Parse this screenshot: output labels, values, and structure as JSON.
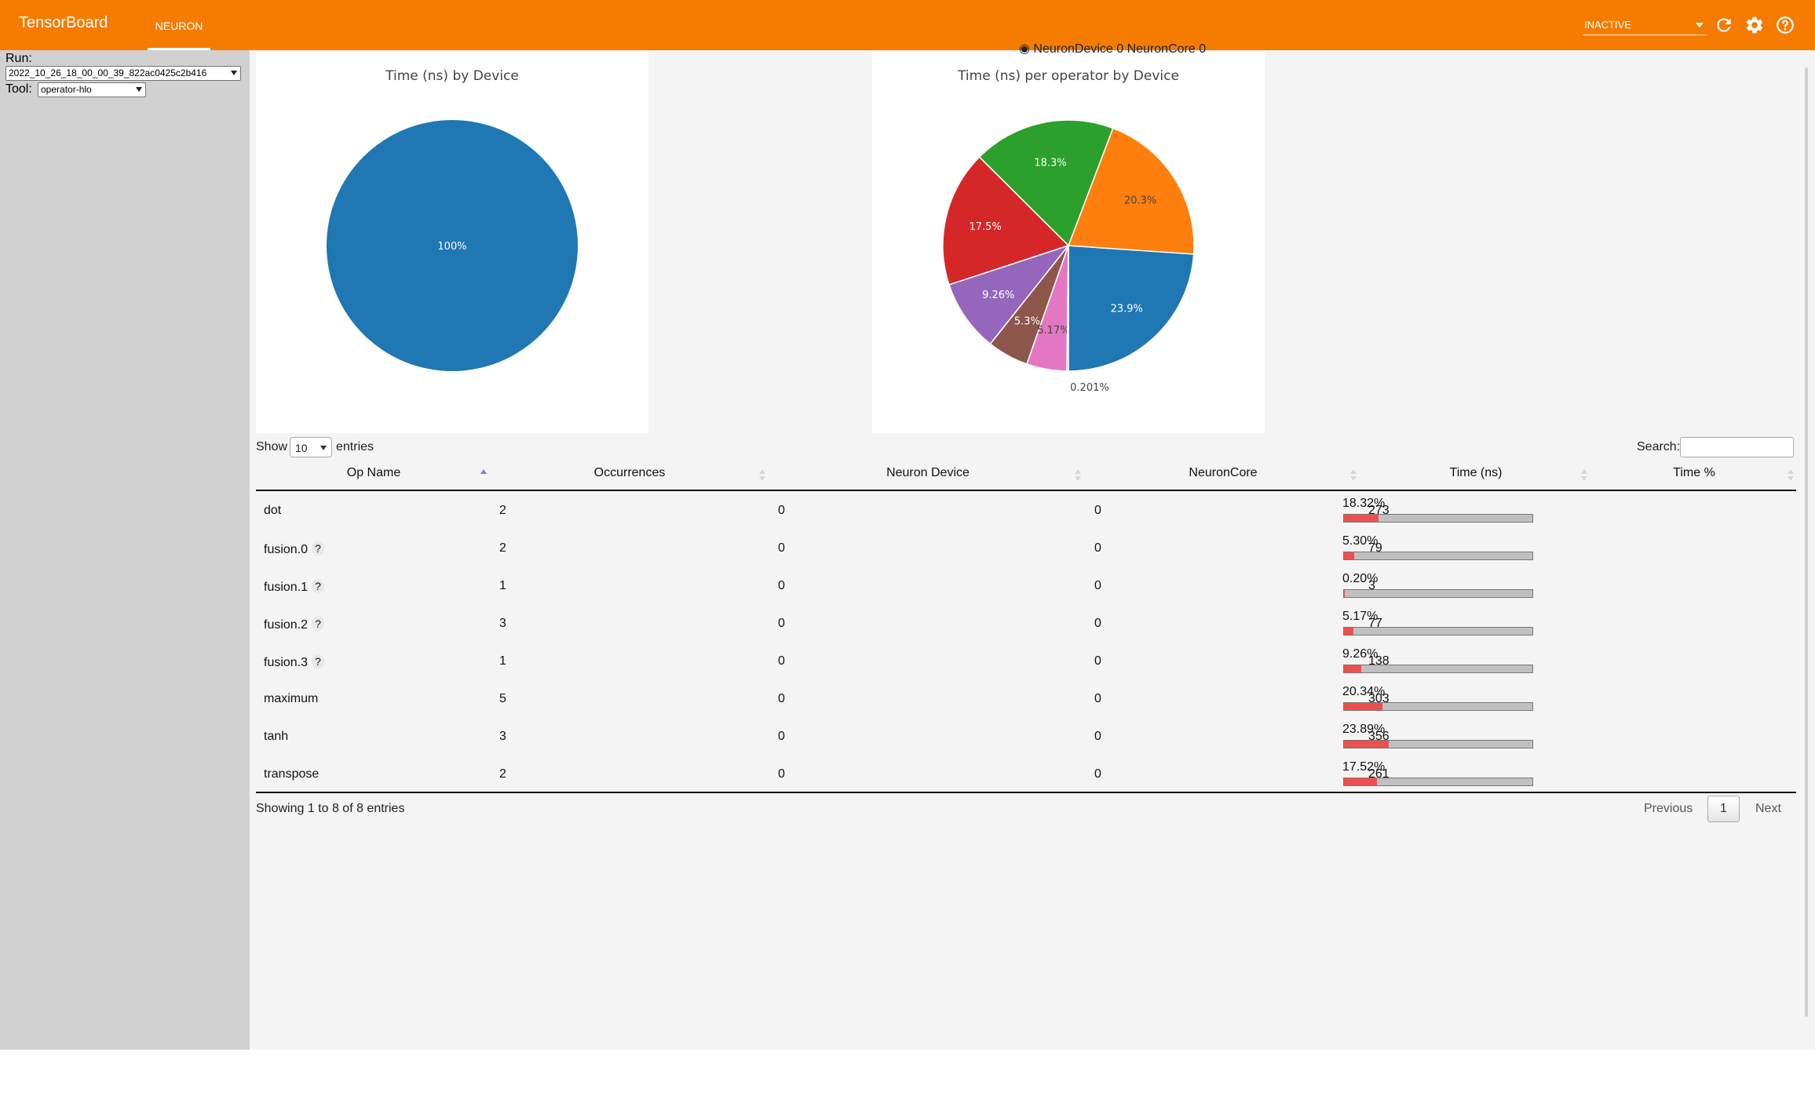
{
  "app": {
    "title": "TensorBoard",
    "active_tab": "NEURON",
    "status_select": "INACTIVE"
  },
  "icons": {
    "refresh": "refresh-icon",
    "settings": "gear-icon",
    "help": "help-icon"
  },
  "sidebar": {
    "run_label": "Run:",
    "run_value": "2022_10_26_18_00_00_39_822ac0425c2b416",
    "tool_label": "Tool:",
    "tool_value": "operator-hlo"
  },
  "legend_clip_text": "NeuronDevice 0 NeuronCore 0",
  "chart_data": [
    {
      "type": "pie",
      "title": "Time (ns) by Device",
      "labels": [
        "100%"
      ],
      "values": [
        100
      ],
      "colors": [
        "#1f77b4"
      ]
    },
    {
      "type": "pie",
      "title": "Time (ns) per operator by Device",
      "labels": [
        "23.9%",
        "20.3%",
        "18.3%",
        "17.5%",
        "9.26%",
        "5.3%",
        "5.17%",
        "0.201%"
      ],
      "values": [
        23.9,
        20.3,
        18.3,
        17.5,
        9.26,
        5.3,
        5.17,
        0.201
      ],
      "colors": [
        "#1f77b4",
        "#ff7f0e",
        "#2ca02c",
        "#d62728",
        "#9467bd",
        "#8c564b",
        "#e377c2",
        "#7f7f7f"
      ],
      "label_colors": [
        "#ffffff",
        "#444444",
        "#ffffff",
        "#ffffff",
        "#ffffff",
        "#ffffff",
        "#444444",
        "#444444"
      ]
    }
  ],
  "table": {
    "show_label": "Show",
    "entries_value": "10",
    "entries_label": "entries",
    "search_label": "Search:",
    "columns": [
      "Op Name",
      "Occurrences",
      "Neuron Device",
      "NeuronCore",
      "Time (ns)",
      "Time %"
    ],
    "rows": [
      {
        "op": "dot",
        "has_q": false,
        "occ": "2",
        "dev": "0",
        "core": "0",
        "time": "273",
        "pct": "18.32%",
        "frac": 0.1832
      },
      {
        "op": "fusion.0",
        "has_q": true,
        "occ": "2",
        "dev": "0",
        "core": "0",
        "time": "79",
        "pct": "5.30%",
        "frac": 0.053
      },
      {
        "op": "fusion.1",
        "has_q": true,
        "occ": "1",
        "dev": "0",
        "core": "0",
        "time": "3",
        "pct": "0.20%",
        "frac": 0.002
      },
      {
        "op": "fusion.2",
        "has_q": true,
        "occ": "3",
        "dev": "0",
        "core": "0",
        "time": "77",
        "pct": "5.17%",
        "frac": 0.0517
      },
      {
        "op": "fusion.3",
        "has_q": true,
        "occ": "1",
        "dev": "0",
        "core": "0",
        "time": "138",
        "pct": "9.26%",
        "frac": 0.0926
      },
      {
        "op": "maximum",
        "has_q": false,
        "occ": "5",
        "dev": "0",
        "core": "0",
        "time": "303",
        "pct": "20.34%",
        "frac": 0.2034
      },
      {
        "op": "tanh",
        "has_q": false,
        "occ": "3",
        "dev": "0",
        "core": "0",
        "time": "356",
        "pct": "23.89%",
        "frac": 0.2389
      },
      {
        "op": "transpose",
        "has_q": false,
        "occ": "2",
        "dev": "0",
        "core": "0",
        "time": "261",
        "pct": "17.52%",
        "frac": 0.1752
      }
    ],
    "question_mark": "?",
    "info": "Showing 1 to 8 of 8 entries",
    "prev_label": "Previous",
    "page_number": "1",
    "next_label": "Next"
  }
}
